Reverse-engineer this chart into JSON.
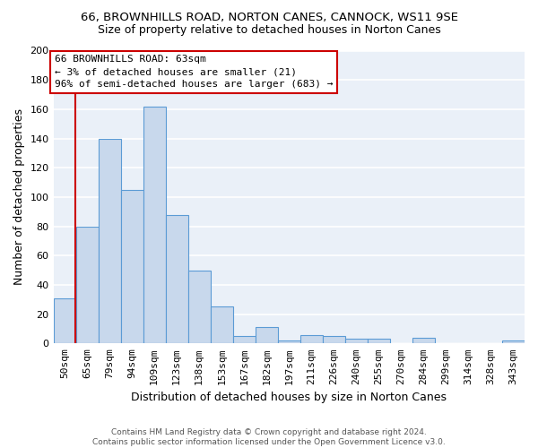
{
  "title1": "66, BROWNHILLS ROAD, NORTON CANES, CANNOCK, WS11 9SE",
  "title2": "Size of property relative to detached houses in Norton Canes",
  "xlabel": "Distribution of detached houses by size in Norton Canes",
  "ylabel": "Number of detached properties",
  "footer1": "Contains HM Land Registry data © Crown copyright and database right 2024.",
  "footer2": "Contains public sector information licensed under the Open Government Licence v3.0.",
  "categories": [
    "50sqm",
    "65sqm",
    "79sqm",
    "94sqm",
    "109sqm",
    "123sqm",
    "138sqm",
    "153sqm",
    "167sqm",
    "182sqm",
    "197sqm",
    "211sqm",
    "226sqm",
    "240sqm",
    "255sqm",
    "270sqm",
    "284sqm",
    "299sqm",
    "314sqm",
    "328sqm",
    "343sqm"
  ],
  "values": [
    31,
    80,
    140,
    105,
    162,
    88,
    50,
    25,
    5,
    11,
    2,
    6,
    5,
    3,
    3,
    0,
    4,
    0,
    0,
    0,
    2
  ],
  "bar_color": "#c8d8ec",
  "bar_edge_color": "#5b9bd5",
  "background_color": "#eaf0f8",
  "grid_color": "#ffffff",
  "annotation_line1": "66 BROWNHILLS ROAD: 63sqm",
  "annotation_line2": "← 3% of detached houses are smaller (21)",
  "annotation_line3": "96% of semi-detached houses are larger (683) →",
  "annotation_box_color": "#ffffff",
  "annotation_box_edge_color": "#cc0000",
  "vline_color": "#cc0000",
  "ylim": [
    0,
    200
  ],
  "yticks": [
    0,
    20,
    40,
    60,
    80,
    100,
    120,
    140,
    160,
    180,
    200
  ],
  "title1_fontsize": 9.5,
  "title2_fontsize": 9,
  "ylabel_fontsize": 9,
  "xlabel_fontsize": 9,
  "tick_fontsize": 8,
  "annot_fontsize": 8,
  "footer_fontsize": 6.5
}
